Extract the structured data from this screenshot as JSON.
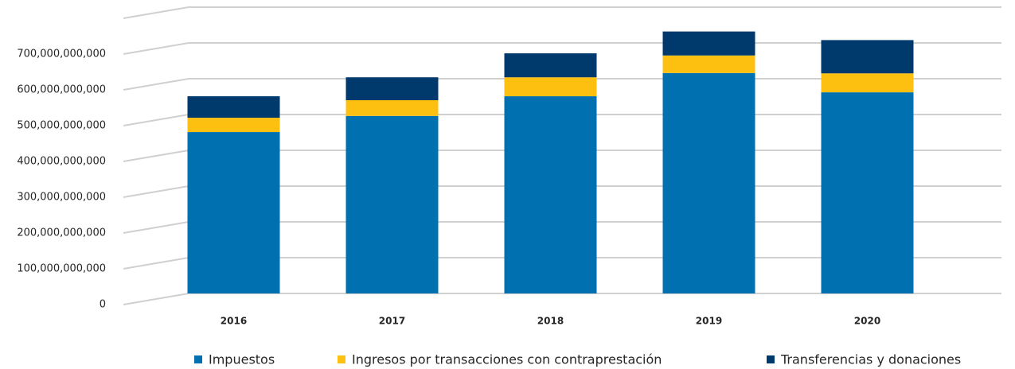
{
  "chart_data": {
    "type": "bar",
    "stacked": true,
    "categories": [
      "2016",
      "2017",
      "2018",
      "2019",
      "2020"
    ],
    "series": [
      {
        "name": "Impuestos",
        "color": "#0070b0",
        "values": [
          451000000000,
          496000000000,
          551000000000,
          616000000000,
          562000000000
        ]
      },
      {
        "name": "Ingresos por transacciones con contraprestación",
        "color": "#fdc010",
        "values": [
          40000000000,
          44000000000,
          53000000000,
          49000000000,
          53000000000
        ]
      },
      {
        "name": "Transferencias y donaciones",
        "color": "#003a6c",
        "values": [
          60000000000,
          64000000000,
          67000000000,
          67000000000,
          93000000000
        ]
      }
    ],
    "ylim": [
      0,
      800000000000
    ],
    "yticks": [
      {
        "value": 0,
        "label": "0"
      },
      {
        "value": 100000000000,
        "label": "100,000,000,000"
      },
      {
        "value": 200000000000,
        "label": "200,000,000,000"
      },
      {
        "value": 300000000000,
        "label": "300,000,000,000"
      },
      {
        "value": 400000000000,
        "label": "400,000,000,000"
      },
      {
        "value": 500000000000,
        "label": "500,000,000,000"
      },
      {
        "value": 600000000000,
        "label": "600,000,000,000"
      },
      {
        "value": 700000000000,
        "label": "700,000,000,000"
      }
    ],
    "grid": true,
    "legend": "bottom"
  }
}
